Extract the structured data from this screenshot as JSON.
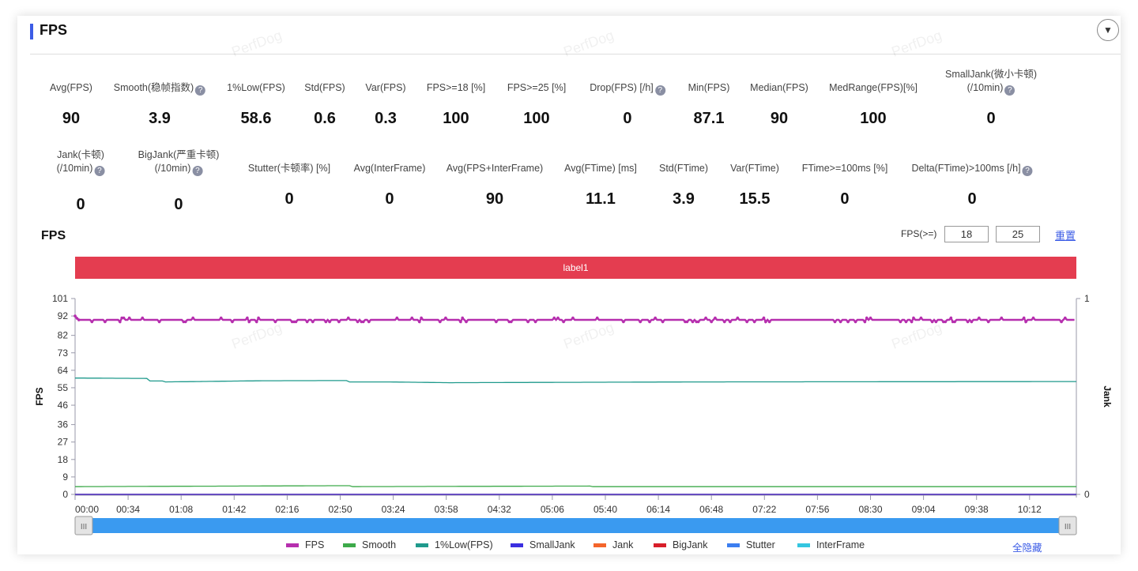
{
  "header": {
    "title": "FPS",
    "collapse_icon": "chevron-down-icon"
  },
  "watermark": "PerfDog",
  "metrics_row1": [
    {
      "label": "Avg(FPS)",
      "value": "90",
      "help": false
    },
    {
      "label": "Smooth(稳帧指数)",
      "value": "3.9",
      "help": true
    },
    {
      "label": "1%Low(FPS)",
      "value": "58.6",
      "help": false
    },
    {
      "label": "Std(FPS)",
      "value": "0.6",
      "help": false
    },
    {
      "label": "Var(FPS)",
      "value": "0.3",
      "help": false
    },
    {
      "label": "FPS>=18 [%]",
      "value": "100",
      "help": false
    },
    {
      "label": "FPS>=25 [%]",
      "value": "100",
      "help": false
    },
    {
      "label": "Drop(FPS) [/h]",
      "value": "0",
      "help": true
    },
    {
      "label": "Min(FPS)",
      "value": "87.1",
      "help": false
    },
    {
      "label": "Median(FPS)",
      "value": "90",
      "help": false
    },
    {
      "label": "MedRange(FPS)[%]",
      "value": "100",
      "help": false
    },
    {
      "label": "SmallJank(微小卡顿)",
      "label2": "(/10min)",
      "value": "0",
      "help": true
    }
  ],
  "metrics_row2": [
    {
      "label": "Jank(卡顿)",
      "label2": "(/10min)",
      "value": "0",
      "help": true
    },
    {
      "label": "BigJank(严重卡顿)",
      "label2": "(/10min)",
      "value": "0",
      "help": true
    },
    {
      "label": "Stutter(卡顿率) [%]",
      "value": "0",
      "help": false
    },
    {
      "label": "Avg(InterFrame)",
      "value": "0",
      "help": false
    },
    {
      "label": "Avg(FPS+InterFrame)",
      "value": "90",
      "help": false
    },
    {
      "label": "Avg(FTime) [ms]",
      "value": "11.1",
      "help": false
    },
    {
      "label": "Std(FTime)",
      "value": "3.9",
      "help": false
    },
    {
      "label": "Var(FTime)",
      "value": "15.5",
      "help": false
    },
    {
      "label": "FTime>=100ms [%]",
      "value": "0",
      "help": false
    },
    {
      "label": "Delta(FTime)>100ms [/h]",
      "value": "0",
      "help": true
    }
  ],
  "chart_controls": {
    "title": "FPS",
    "threshold_label": "FPS(>=)",
    "threshold1": "18",
    "threshold2": "25",
    "reset": "重置"
  },
  "label_bar": "label1",
  "chart_data": {
    "type": "line",
    "ylabel": "FPS",
    "y2label": "Jank",
    "yticks": [
      0,
      9,
      18,
      27,
      36,
      46,
      55,
      64,
      73,
      82,
      92,
      101
    ],
    "y2ticks": [
      0,
      1
    ],
    "ylim": [
      0,
      101
    ],
    "y2lim": [
      0,
      1
    ],
    "xticks": [
      "00:00",
      "00:34",
      "01:08",
      "01:42",
      "02:16",
      "02:50",
      "03:24",
      "03:58",
      "04:32",
      "05:06",
      "05:40",
      "06:14",
      "06:48",
      "07:22",
      "07:56",
      "08:30",
      "09:04",
      "09:38",
      "10:12"
    ],
    "xlim_seconds": [
      0,
      642
    ],
    "series": [
      {
        "name": "FPS",
        "color": "#b62fae",
        "marker": true,
        "base": 90,
        "points": [
          [
            0,
            92
          ],
          [
            2,
            90
          ],
          [
            60,
            89
          ],
          [
            80,
            90
          ],
          [
            170,
            91
          ],
          [
            172,
            87
          ],
          [
            176,
            90
          ],
          [
            300,
            90
          ],
          [
            330,
            89
          ],
          [
            450,
            90
          ],
          [
            480,
            89
          ],
          [
            550,
            90
          ],
          [
            642,
            90
          ]
        ]
      },
      {
        "name": "Smooth",
        "color": "#3daa4a",
        "marker": false,
        "points": [
          [
            0,
            4
          ],
          [
            176,
            4.5
          ],
          [
            178,
            4
          ],
          [
            330,
            4.3
          ],
          [
            332,
            4
          ],
          [
            642,
            4
          ]
        ]
      },
      {
        "name": "1%Low(FPS)",
        "color": "#1f9a8c",
        "marker": false,
        "points": [
          [
            0,
            60
          ],
          [
            46,
            59.8
          ],
          [
            48,
            58.5
          ],
          [
            56,
            58.5
          ],
          [
            58,
            58
          ],
          [
            120,
            58.6
          ],
          [
            174,
            58.7
          ],
          [
            176,
            58
          ],
          [
            200,
            58
          ],
          [
            240,
            57.6
          ],
          [
            400,
            58
          ],
          [
            642,
            58.2
          ]
        ]
      },
      {
        "name": "SmallJank",
        "color": "#3b2fe0",
        "marker": false,
        "points": [
          [
            0,
            0
          ],
          [
            642,
            0
          ]
        ]
      },
      {
        "name": "Jank",
        "color": "#f4652b",
        "marker": true,
        "points": [
          [
            0,
            0
          ],
          [
            642,
            0
          ]
        ]
      },
      {
        "name": "BigJank",
        "color": "#d81e2a",
        "marker": true,
        "points": [
          [
            0,
            0
          ],
          [
            642,
            0
          ]
        ]
      },
      {
        "name": "Stutter",
        "color": "#3c7ef0",
        "marker": false,
        "points": [
          [
            0,
            0
          ],
          [
            642,
            0
          ]
        ]
      },
      {
        "name": "InterFrame",
        "color": "#34c6e0",
        "marker": false,
        "points": [
          [
            0,
            0
          ],
          [
            642,
            0
          ]
        ]
      }
    ]
  },
  "legend_hide_all": "全隐藏"
}
